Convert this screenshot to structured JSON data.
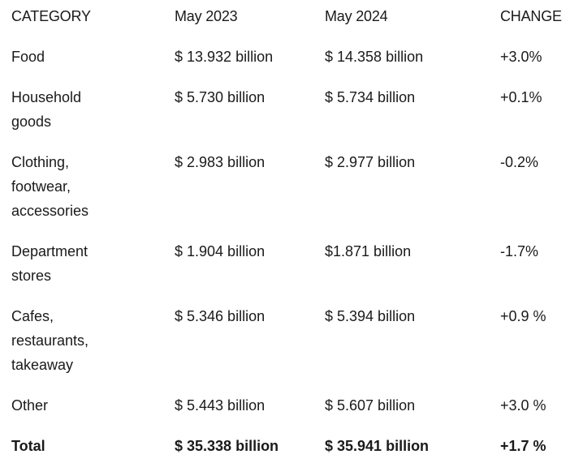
{
  "table": {
    "headers": [
      "CATEGORY",
      "May 2023",
      "May 2024",
      "CHANGE"
    ],
    "rows": [
      {
        "category_lines": [
          "Food"
        ],
        "may2023": "$ 13.932 billion",
        "may2024": "$ 14.358 billion",
        "change": "+3.0%"
      },
      {
        "category_lines": [
          "Household",
          "goods"
        ],
        "may2023": "$ 5.730 billion",
        "may2024": "$ 5.734 billion",
        "change": "+0.1%"
      },
      {
        "category_lines": [
          "Clothing,",
          "footwear,",
          "accessories"
        ],
        "may2023": "$ 2.983 billion",
        "may2024": "$ 2.977 billion",
        "change": "-0.2%"
      },
      {
        "category_lines": [
          "Department",
          "stores"
        ],
        "may2023": "$ 1.904 billion",
        "may2024": "$1.871 billion",
        "change": "-1.7%"
      },
      {
        "category_lines": [
          "Cafes,",
          "restaurants,",
          "takeaway"
        ],
        "may2023": "$ 5.346 billion",
        "may2024": "$ 5.394 billion",
        "change": "+0.9 %"
      },
      {
        "category_lines": [
          "Other"
        ],
        "may2023": "$ 5.443 billion",
        "may2024": "$ 5.607 billion",
        "change": "+3.0 %"
      }
    ],
    "total": {
      "category": "Total",
      "may2023": "$ 35.338 billion",
      "may2024": "$ 35.941 billion",
      "change": "+1.7 %"
    }
  }
}
